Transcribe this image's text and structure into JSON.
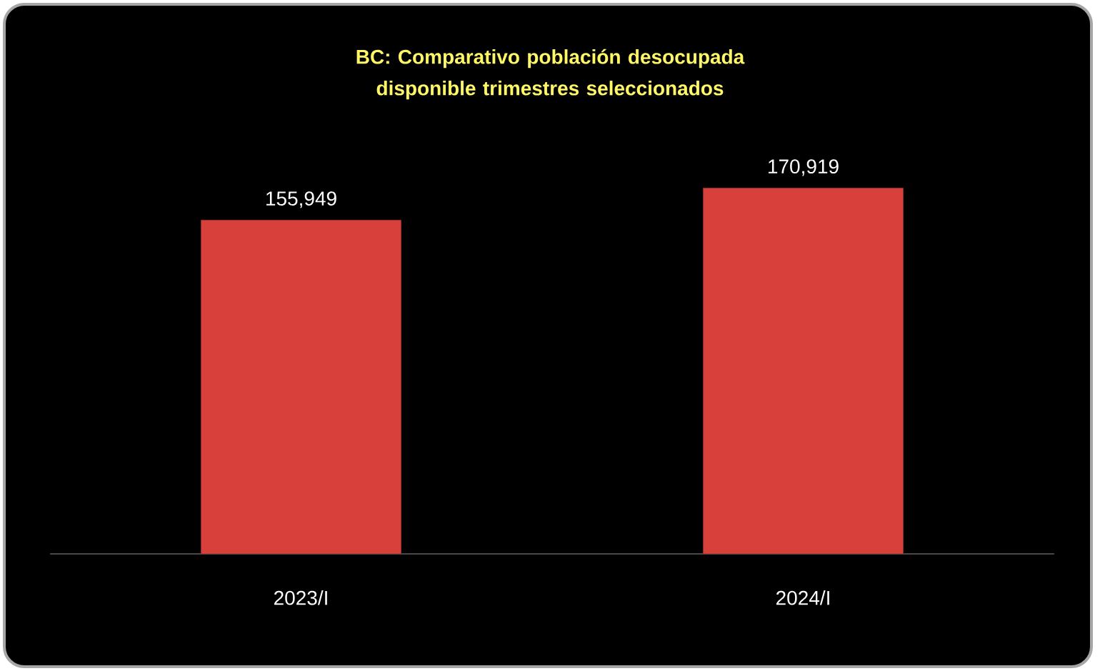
{
  "chart_data": {
    "type": "bar",
    "title": "BC:  Comparativo población desocupada disponible trimestres seleccionados",
    "categories": [
      "2023/I",
      "2024/I"
    ],
    "values": [
      155949,
      170919
    ],
    "value_labels": [
      "155,949",
      "170,919"
    ],
    "color": "#d8403c",
    "data_labels": false
  }
}
